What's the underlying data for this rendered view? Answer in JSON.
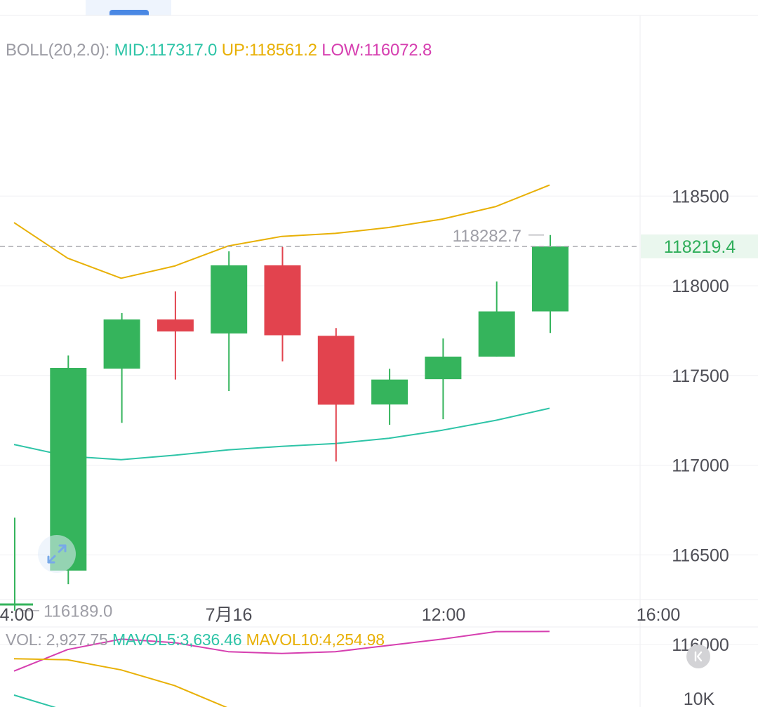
{
  "boll_legend": {
    "name": "BOLL(20,2.0):",
    "mid": "MID:117317.0",
    "up": "UP:118561.2",
    "low": "LOW:116072.8"
  },
  "vol_legend": {
    "vol": "VOL: 2,927.75",
    "mavol5": "MAVOL5:3,636.46",
    "mavol10": "MAVOL10:4,254.98"
  },
  "price_tag": "118219.4",
  "high_label": "118282.7",
  "low_label": "116189.0",
  "volume_axis_label": "10K",
  "colors": {
    "up_candle": "#35b45c",
    "down_candle": "#e2434e",
    "mid": "#2ec4a7",
    "upper": "#e8b005",
    "lower": "#d63fb0",
    "price_tag_text": "#2fae5a",
    "price_tag_bg": "#eaf7ee"
  },
  "icons": {
    "expand": "expand-arrows-icon",
    "collapse": "collapse-chevron-icon"
  },
  "chart_data": {
    "type": "candlestick",
    "y_ticks": [
      118500,
      118000,
      117500,
      117000,
      116500,
      116000
    ],
    "x_ticks": [
      "4:00",
      "7月16",
      "12:00",
      "16:00"
    ],
    "ylim": [
      115780,
      118760
    ],
    "candles": [
      {
        "open": 116229,
        "high": 116707,
        "low": 116189,
        "close": 116229
      },
      {
        "open": 116412,
        "high": 117611,
        "low": 116336,
        "close": 117542
      },
      {
        "open": 117538,
        "high": 117848,
        "low": 117236,
        "close": 117812
      },
      {
        "open": 117812,
        "high": 117968,
        "low": 117477,
        "close": 117745
      },
      {
        "open": 117734,
        "high": 118192,
        "low": 117413,
        "close": 118114
      },
      {
        "open": 118114,
        "high": 118216,
        "low": 117579,
        "close": 117724
      },
      {
        "open": 117721,
        "high": 117764,
        "low": 117020,
        "close": 117337
      },
      {
        "open": 117338,
        "high": 117537,
        "low": 117225,
        "close": 117477
      },
      {
        "open": 117479,
        "high": 117706,
        "low": 117256,
        "close": 117605
      },
      {
        "open": 117605,
        "high": 118024,
        "low": 117605,
        "close": 117857
      },
      {
        "open": 117857,
        "high": 118282.7,
        "low": 117737,
        "close": 118219.4
      }
    ],
    "boll_mid": [
      117115,
      117050,
      117030,
      117055,
      117085,
      117105,
      117120,
      117150,
      117195,
      117250,
      117317
    ],
    "boll_up": [
      118352,
      118154,
      118042,
      118110,
      118222,
      118275,
      118292,
      118325,
      118372,
      118442,
      118561.2
    ],
    "boll_low": [
      115852,
      115972,
      116030,
      116010,
      115960,
      115950,
      115960,
      115995,
      116030,
      116072,
      116072.8
    ],
    "mavol10": [
      30900,
      30850,
      30400,
      29700,
      28700
    ],
    "mavol5": [
      31200,
      30300
    ]
  }
}
